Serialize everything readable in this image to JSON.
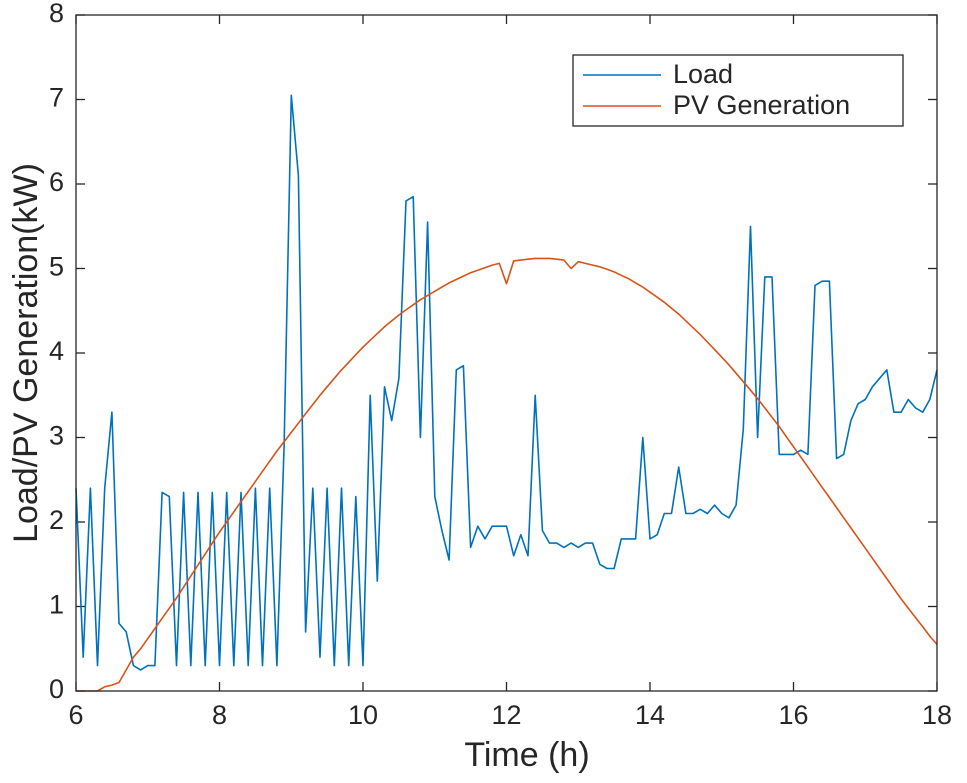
{
  "chart_data": {
    "type": "line",
    "xlabel": "Time (h)",
    "ylabel": "Load/PV Generation(kW)",
    "x": [
      6,
      6.1,
      6.2,
      6.3,
      6.4,
      6.5,
      6.6,
      6.7,
      6.8,
      6.9,
      7,
      7.1,
      7.2,
      7.3,
      7.4,
      7.5,
      7.6,
      7.7,
      7.8,
      7.9,
      8,
      8.1,
      8.2,
      8.3,
      8.4,
      8.5,
      8.6,
      8.7,
      8.8,
      8.9,
      9,
      9.1,
      9.2,
      9.3,
      9.4,
      9.5,
      9.6,
      9.7,
      9.8,
      9.9,
      10,
      10.1,
      10.2,
      10.3,
      10.4,
      10.5,
      10.6,
      10.7,
      10.8,
      10.9,
      11,
      11.1,
      11.2,
      11.3,
      11.4,
      11.5,
      11.6,
      11.7,
      11.8,
      11.9,
      12,
      12.1,
      12.2,
      12.3,
      12.4,
      12.5,
      12.6,
      12.7,
      12.8,
      12.9,
      13,
      13.1,
      13.2,
      13.3,
      13.4,
      13.5,
      13.6,
      13.7,
      13.8,
      13.9,
      14,
      14.1,
      14.2,
      14.3,
      14.4,
      14.5,
      14.6,
      14.7,
      14.8,
      14.9,
      15,
      15.1,
      15.2,
      15.3,
      15.4,
      15.5,
      15.6,
      15.7,
      15.8,
      15.9,
      16,
      16.1,
      16.2,
      16.3,
      16.4,
      16.5,
      16.6,
      16.7,
      16.8,
      16.9,
      17,
      17.1,
      17.2,
      17.3,
      17.4,
      17.5,
      17.6,
      17.7,
      17.8,
      17.9,
      18
    ],
    "series": [
      {
        "name": "Load",
        "color": "#0072bd",
        "values": [
          2.4,
          0.4,
          2.4,
          0.3,
          2.4,
          3.3,
          0.8,
          0.7,
          0.3,
          0.25,
          0.3,
          0.3,
          2.35,
          2.3,
          0.3,
          2.35,
          0.3,
          2.35,
          0.3,
          2.35,
          0.3,
          2.35,
          0.3,
          2.35,
          0.3,
          2.4,
          0.3,
          2.4,
          0.3,
          2.9,
          7.05,
          6.1,
          0.7,
          2.4,
          0.4,
          2.4,
          0.3,
          2.4,
          0.3,
          2.3,
          0.3,
          3.5,
          1.3,
          3.6,
          3.2,
          3.7,
          5.8,
          5.85,
          3.0,
          5.55,
          2.3,
          1.9,
          1.55,
          3.8,
          3.85,
          1.7,
          1.95,
          1.8,
          1.95,
          1.95,
          1.95,
          1.6,
          1.85,
          1.6,
          3.5,
          1.9,
          1.75,
          1.75,
          1.7,
          1.75,
          1.7,
          1.75,
          1.75,
          1.5,
          1.45,
          1.45,
          1.8,
          1.8,
          1.8,
          3.0,
          1.8,
          1.85,
          2.1,
          2.1,
          2.65,
          2.1,
          2.1,
          2.15,
          2.1,
          2.2,
          2.1,
          2.05,
          2.2,
          3.1,
          5.5,
          3.0,
          4.9,
          4.9,
          2.8,
          2.8,
          2.8,
          2.85,
          2.8,
          4.8,
          4.85,
          4.85,
          2.75,
          2.8,
          3.2,
          3.4,
          3.45,
          3.6,
          3.7,
          3.8,
          3.3,
          3.3,
          3.45,
          3.35,
          3.3,
          3.45,
          3.8
        ]
      },
      {
        "name": "PV Generation",
        "color": "#d95319",
        "values": [
          0,
          0,
          0,
          0,
          0.05,
          0.07,
          0.1,
          0.25,
          0.4,
          0.5,
          0.62,
          0.74,
          0.86,
          0.98,
          1.1,
          1.23,
          1.36,
          1.49,
          1.62,
          1.75,
          1.88,
          2.0,
          2.12,
          2.24,
          2.36,
          2.48,
          2.6,
          2.72,
          2.84,
          2.95,
          3.06,
          3.17,
          3.28,
          3.39,
          3.5,
          3.6,
          3.7,
          3.8,
          3.89,
          3.98,
          4.07,
          4.15,
          4.23,
          4.31,
          4.38,
          4.45,
          4.51,
          4.57,
          4.63,
          4.68,
          4.73,
          4.78,
          4.83,
          4.87,
          4.91,
          4.95,
          4.98,
          5.01,
          5.04,
          5.06,
          4.82,
          5.09,
          5.1,
          5.11,
          5.12,
          5.12,
          5.12,
          5.11,
          5.1,
          5.0,
          5.08,
          5.06,
          5.04,
          5.02,
          4.99,
          4.96,
          4.92,
          4.88,
          4.83,
          4.78,
          4.72,
          4.66,
          4.6,
          4.53,
          4.46,
          4.38,
          4.3,
          4.22,
          4.13,
          4.04,
          3.95,
          3.86,
          3.76,
          3.66,
          3.56,
          3.46,
          3.35,
          3.24,
          3.13,
          3.01,
          2.89,
          2.77,
          2.65,
          2.53,
          2.41,
          2.29,
          2.17,
          2.05,
          1.93,
          1.81,
          1.69,
          1.57,
          1.45,
          1.33,
          1.21,
          1.09,
          0.98,
          0.87,
          0.76,
          0.65,
          0.55
        ]
      }
    ],
    "xlim": [
      6,
      18
    ],
    "xticks": [
      6,
      8,
      10,
      12,
      14,
      16,
      18
    ],
    "ylim": [
      0,
      8
    ],
    "yticks": [
      0,
      1,
      2,
      3,
      4,
      5,
      6,
      7,
      8
    ],
    "grid": false,
    "legend": "northeast"
  }
}
